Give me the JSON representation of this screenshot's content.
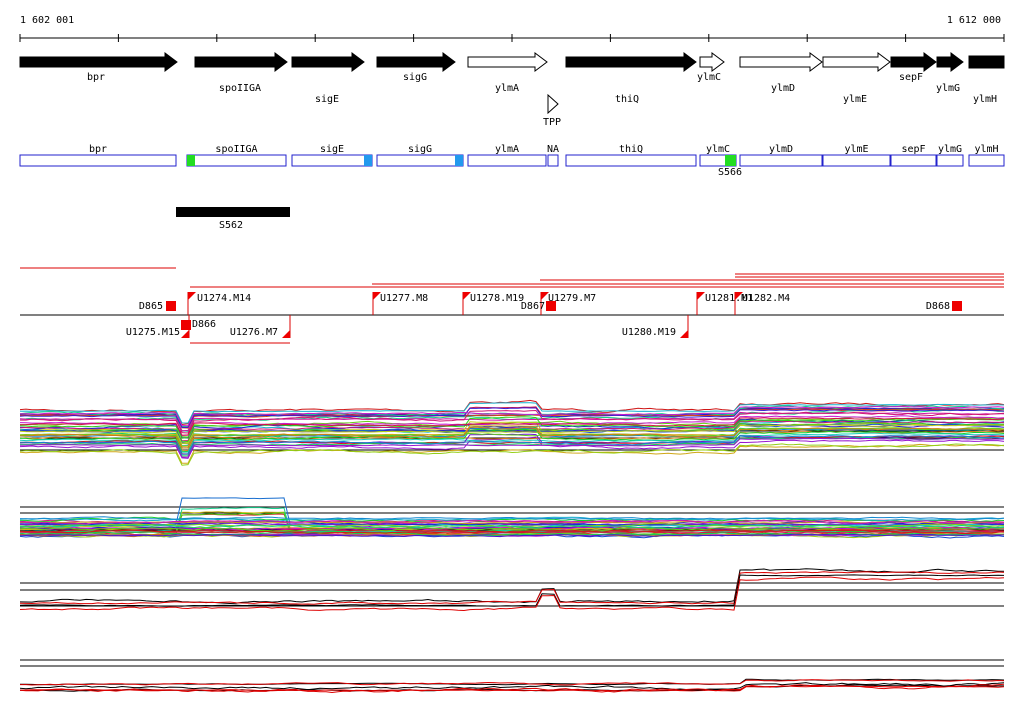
{
  "ruler": {
    "start": "1 602 001",
    "end": "1 612 000"
  },
  "genes": [
    "bpr",
    "spoIIGA",
    "sigE",
    "sigG",
    "ylmA",
    "thiQ",
    "ylmC",
    "ylmD",
    "ylmE",
    "sepF",
    "ylmG",
    "ylmH"
  ],
  "riboswitch": "TPP",
  "cds_boxes": [
    "bpr",
    "spoIIGA",
    "sigE",
    "sigG",
    "ylmA",
    "NA",
    "thiQ",
    "ylmC",
    "ylmD",
    "ylmE",
    "sepF",
    "ylmG",
    "ylmH"
  ],
  "binding_site": "S566",
  "segment": "S562",
  "upper_features": [
    "D865",
    "U1274.M14",
    "U1277.M8",
    "U1278.M19",
    "U1279.M7",
    "D867",
    "U1281.M1",
    "U1282.M4",
    "D868"
  ],
  "lower_features": [
    "U1275.M15",
    "D866",
    "U1276.M7",
    "U1280.M19"
  ]
}
